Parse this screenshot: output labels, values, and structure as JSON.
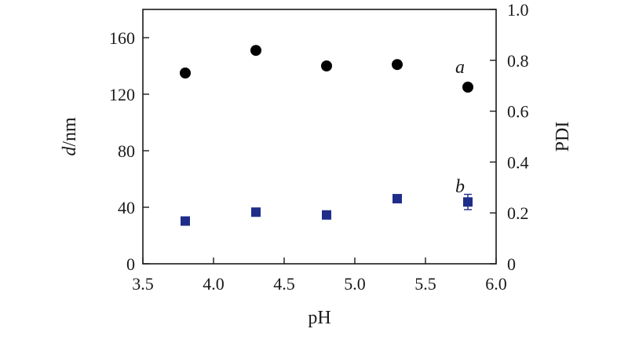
{
  "chart_data": {
    "type": "scatter",
    "title": "",
    "x_axis": {
      "label": "pH",
      "range": [
        3.5,
        6.0
      ],
      "ticks": [
        3.5,
        4.0,
        4.5,
        5.0,
        5.5,
        6.0
      ],
      "tick_labels": [
        "3.5",
        "4.0",
        "4.5",
        "5.0",
        "5.5",
        "6.0"
      ]
    },
    "y_axis_left": {
      "label_italic": "d",
      "label_rest": "/nm",
      "range": [
        0,
        180
      ],
      "ticks": [
        0,
        40,
        80,
        120,
        160
      ],
      "tick_labels": [
        "0",
        "40",
        "80",
        "120",
        "160"
      ]
    },
    "y_axis_right": {
      "label": "PDI",
      "range": [
        0,
        1.0
      ],
      "ticks": [
        0,
        0.2,
        0.4,
        0.6,
        0.8,
        1.0
      ],
      "tick_labels": [
        "0",
        "0.2",
        "0.4",
        "0.6",
        "0.8",
        "1.0"
      ]
    },
    "grid": false,
    "series": [
      {
        "name": "a",
        "axis": "left",
        "marker": "circle",
        "color": "#000000",
        "x": [
          3.8,
          4.3,
          4.8,
          5.3,
          5.8
        ],
        "y": [
          135,
          151,
          140,
          141,
          125
        ]
      },
      {
        "name": "b",
        "axis": "right",
        "marker": "square",
        "color": "#1f2d8a",
        "x": [
          3.8,
          4.3,
          4.8,
          5.3,
          5.8
        ],
        "y": [
          0.168,
          0.203,
          0.192,
          0.256,
          0.243
        ],
        "error": [
          0,
          0,
          0,
          0,
          0.03
        ]
      }
    ]
  }
}
